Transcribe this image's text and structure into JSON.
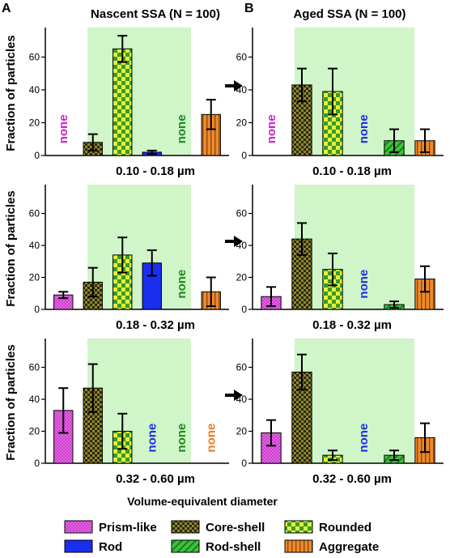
{
  "panel_letters": [
    "A",
    "B"
  ],
  "column_titles": [
    "Nascent SSA (N = 100)",
    "Aged SSA (N = 100)"
  ],
  "ylabel": "Fraction of particles",
  "xlabel": "Volume-equivalent diameter",
  "none_label": "none",
  "colors": {
    "prism": "#d23fd2",
    "core": "#8f8630",
    "rounded": "#e6f03a",
    "rod": "#1a2ef0",
    "rodshell": "#3cc43c",
    "aggregate": "#f08a2a",
    "highlight": "#cff5c8"
  },
  "legend": [
    {
      "key": "prism",
      "label": "Prism-like"
    },
    {
      "key": "core",
      "label": "Core-shell"
    },
    {
      "key": "rounded",
      "label": "Rounded"
    },
    {
      "key": "rod",
      "label": "Rod"
    },
    {
      "key": "rodshell",
      "label": "Rod-shell"
    },
    {
      "key": "aggregate",
      "label": "Aggregate"
    }
  ],
  "chart_data": [
    {
      "type": "bar",
      "column": "Nascent SSA (N = 100)",
      "size_bin": "0.10 - 0.18 µm",
      "categories": [
        "Prism-like",
        "Core-shell",
        "Rounded",
        "Rod",
        "Rod-shell",
        "Aggregate"
      ],
      "values": [
        null,
        8,
        65,
        2,
        null,
        25
      ],
      "errors": [
        null,
        5,
        8,
        1,
        null,
        9
      ],
      "ylabel": "Fraction of particles",
      "ylim": [
        0,
        78
      ],
      "yticks": [
        0,
        20,
        40,
        60
      ]
    },
    {
      "type": "bar",
      "column": "Aged SSA (N = 100)",
      "size_bin": "0.10 - 0.18 µm",
      "categories": [
        "Prism-like",
        "Core-shell",
        "Rounded",
        "Rod",
        "Rod-shell",
        "Aggregate"
      ],
      "values": [
        null,
        43,
        39,
        null,
        9,
        9
      ],
      "errors": [
        null,
        10,
        14,
        null,
        7,
        7
      ],
      "ylim": [
        0,
        78
      ],
      "yticks": [
        0,
        20,
        40,
        60
      ]
    },
    {
      "type": "bar",
      "column": "Nascent SSA (N = 100)",
      "size_bin": "0.18 - 0.32 µm",
      "categories": [
        "Prism-like",
        "Core-shell",
        "Rounded",
        "Rod",
        "Rod-shell",
        "Aggregate"
      ],
      "values": [
        9,
        17,
        34,
        29,
        null,
        11
      ],
      "errors": [
        2,
        9,
        11,
        8,
        null,
        9
      ],
      "ylabel": "Fraction of particles",
      "ylim": [
        0,
        78
      ],
      "yticks": [
        0,
        20,
        40,
        60
      ]
    },
    {
      "type": "bar",
      "column": "Aged SSA (N = 100)",
      "size_bin": "0.18 - 0.32 µm",
      "categories": [
        "Prism-like",
        "Core-shell",
        "Rounded",
        "Rod",
        "Rod-shell",
        "Aggregate"
      ],
      "values": [
        8,
        44,
        25,
        null,
        3,
        19
      ],
      "errors": [
        6,
        10,
        10,
        null,
        2,
        8
      ],
      "ylim": [
        0,
        78
      ],
      "yticks": [
        0,
        20,
        40,
        60
      ]
    },
    {
      "type": "bar",
      "column": "Nascent SSA (N = 100)",
      "size_bin": "0.32 - 0.60 µm",
      "categories": [
        "Prism-like",
        "Core-shell",
        "Rounded",
        "Rod",
        "Rod-shell",
        "Aggregate"
      ],
      "values": [
        33,
        47,
        20,
        null,
        null,
        null
      ],
      "errors": [
        14,
        15,
        11,
        null,
        null,
        null
      ],
      "ylabel": "Fraction of particles",
      "ylim": [
        0,
        78
      ],
      "yticks": [
        0,
        20,
        40,
        60
      ]
    },
    {
      "type": "bar",
      "column": "Aged SSA (N = 100)",
      "size_bin": "0.32 - 0.60 µm",
      "categories": [
        "Prism-like",
        "Core-shell",
        "Rounded",
        "Rod",
        "Rod-shell",
        "Aggregate"
      ],
      "values": [
        19,
        57,
        5,
        null,
        5,
        16
      ],
      "errors": [
        8,
        11,
        3,
        null,
        3,
        9
      ],
      "ylim": [
        0,
        78
      ],
      "yticks": [
        0,
        20,
        40,
        60
      ]
    }
  ]
}
